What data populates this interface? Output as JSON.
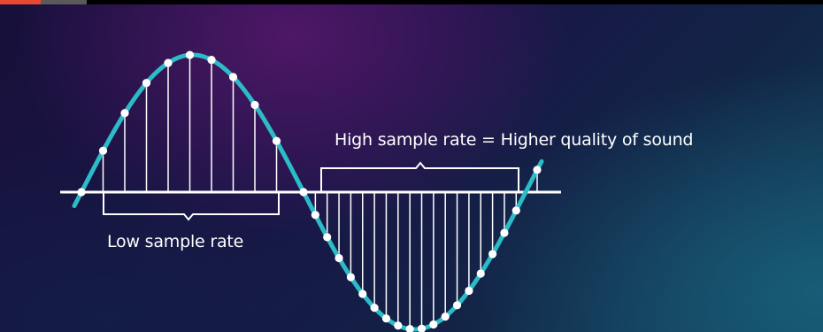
{
  "labels": {
    "low_sample_rate": "Low sample rate",
    "high_sample_rate": "High sample rate = Higher quality of sound"
  },
  "colors": {
    "wave": "#2bbcc8",
    "lines": "#ffffff",
    "accent_bar": "#e8482f"
  },
  "sampling": {
    "low_rate_sample_count": 10,
    "high_rate_sample_count": 19
  }
}
